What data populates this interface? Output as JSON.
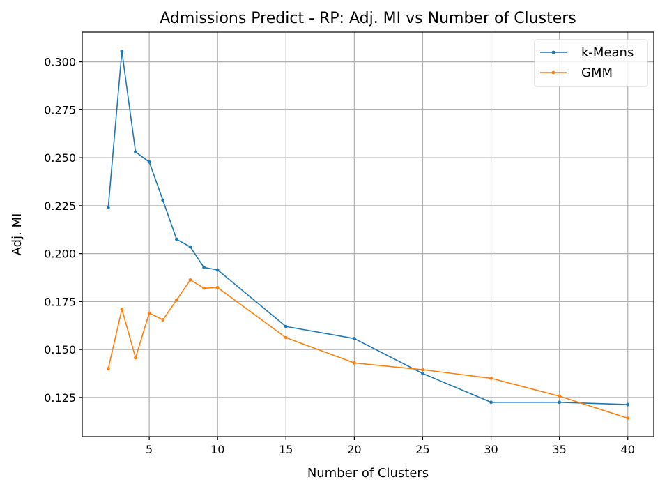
{
  "chart_data": {
    "type": "line",
    "title": "Admissions Predict - RP: Adj. MI vs Number of Clusters",
    "xlabel": "Number of Clusters",
    "ylabel": "Adj. MI",
    "xlim": [
      0.1,
      41.9
    ],
    "ylim": [
      0.1046,
      0.3155
    ],
    "xticks": [
      5,
      10,
      15,
      20,
      25,
      30,
      35,
      40
    ],
    "yticks": [
      0.125,
      0.15,
      0.175,
      0.2,
      0.225,
      0.25,
      0.275,
      0.3
    ],
    "ytick_labels": [
      "0.125",
      "0.150",
      "0.175",
      "0.200",
      "0.225",
      "0.250",
      "0.275",
      "0.300"
    ],
    "grid": true,
    "legend_position": "top-right",
    "x": [
      2,
      3,
      4,
      5,
      6,
      7,
      8,
      9,
      10,
      15,
      20,
      25,
      30,
      35,
      40
    ],
    "series": [
      {
        "name": "k-Means",
        "color": "#1f77b4",
        "values": [
          0.224,
          0.3055,
          0.253,
          0.2478,
          0.2278,
          0.2075,
          0.2035,
          0.1928,
          0.1915,
          0.162,
          0.1557,
          0.1375,
          0.1225,
          0.1225,
          0.1213
        ]
      },
      {
        "name": "GMM",
        "color": "#ff7f0e",
        "values": [
          0.14,
          0.171,
          0.1457,
          0.169,
          0.1655,
          0.1758,
          0.1863,
          0.182,
          0.1823,
          0.1562,
          0.143,
          0.1395,
          0.135,
          0.1257,
          0.1142
        ]
      }
    ]
  }
}
